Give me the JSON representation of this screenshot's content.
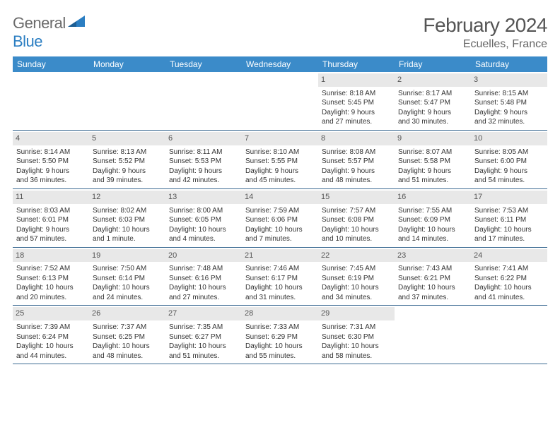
{
  "logo": {
    "text_gray": "General",
    "text_blue": "Blue"
  },
  "title": "February 2024",
  "location": "Ecuelles, France",
  "colors": {
    "header_bg": "#3b8bc9",
    "header_text": "#ffffff",
    "daynum_bg": "#e8e8e8",
    "daynum_text": "#555555",
    "week_border": "#3b6a92",
    "body_text": "#333333",
    "logo_gray": "#6b6b6b",
    "logo_blue": "#2b7ec2"
  },
  "weekdays": [
    "Sunday",
    "Monday",
    "Tuesday",
    "Wednesday",
    "Thursday",
    "Friday",
    "Saturday"
  ],
  "weeks": [
    [
      {
        "empty": true
      },
      {
        "empty": true
      },
      {
        "empty": true
      },
      {
        "empty": true
      },
      {
        "num": "1",
        "sunrise": "Sunrise: 8:18 AM",
        "sunset": "Sunset: 5:45 PM",
        "daylight1": "Daylight: 9 hours",
        "daylight2": "and 27 minutes."
      },
      {
        "num": "2",
        "sunrise": "Sunrise: 8:17 AM",
        "sunset": "Sunset: 5:47 PM",
        "daylight1": "Daylight: 9 hours",
        "daylight2": "and 30 minutes."
      },
      {
        "num": "3",
        "sunrise": "Sunrise: 8:15 AM",
        "sunset": "Sunset: 5:48 PM",
        "daylight1": "Daylight: 9 hours",
        "daylight2": "and 32 minutes."
      }
    ],
    [
      {
        "num": "4",
        "sunrise": "Sunrise: 8:14 AM",
        "sunset": "Sunset: 5:50 PM",
        "daylight1": "Daylight: 9 hours",
        "daylight2": "and 36 minutes."
      },
      {
        "num": "5",
        "sunrise": "Sunrise: 8:13 AM",
        "sunset": "Sunset: 5:52 PM",
        "daylight1": "Daylight: 9 hours",
        "daylight2": "and 39 minutes."
      },
      {
        "num": "6",
        "sunrise": "Sunrise: 8:11 AM",
        "sunset": "Sunset: 5:53 PM",
        "daylight1": "Daylight: 9 hours",
        "daylight2": "and 42 minutes."
      },
      {
        "num": "7",
        "sunrise": "Sunrise: 8:10 AM",
        "sunset": "Sunset: 5:55 PM",
        "daylight1": "Daylight: 9 hours",
        "daylight2": "and 45 minutes."
      },
      {
        "num": "8",
        "sunrise": "Sunrise: 8:08 AM",
        "sunset": "Sunset: 5:57 PM",
        "daylight1": "Daylight: 9 hours",
        "daylight2": "and 48 minutes."
      },
      {
        "num": "9",
        "sunrise": "Sunrise: 8:07 AM",
        "sunset": "Sunset: 5:58 PM",
        "daylight1": "Daylight: 9 hours",
        "daylight2": "and 51 minutes."
      },
      {
        "num": "10",
        "sunrise": "Sunrise: 8:05 AM",
        "sunset": "Sunset: 6:00 PM",
        "daylight1": "Daylight: 9 hours",
        "daylight2": "and 54 minutes."
      }
    ],
    [
      {
        "num": "11",
        "sunrise": "Sunrise: 8:03 AM",
        "sunset": "Sunset: 6:01 PM",
        "daylight1": "Daylight: 9 hours",
        "daylight2": "and 57 minutes."
      },
      {
        "num": "12",
        "sunrise": "Sunrise: 8:02 AM",
        "sunset": "Sunset: 6:03 PM",
        "daylight1": "Daylight: 10 hours",
        "daylight2": "and 1 minute."
      },
      {
        "num": "13",
        "sunrise": "Sunrise: 8:00 AM",
        "sunset": "Sunset: 6:05 PM",
        "daylight1": "Daylight: 10 hours",
        "daylight2": "and 4 minutes."
      },
      {
        "num": "14",
        "sunrise": "Sunrise: 7:59 AM",
        "sunset": "Sunset: 6:06 PM",
        "daylight1": "Daylight: 10 hours",
        "daylight2": "and 7 minutes."
      },
      {
        "num": "15",
        "sunrise": "Sunrise: 7:57 AM",
        "sunset": "Sunset: 6:08 PM",
        "daylight1": "Daylight: 10 hours",
        "daylight2": "and 10 minutes."
      },
      {
        "num": "16",
        "sunrise": "Sunrise: 7:55 AM",
        "sunset": "Sunset: 6:09 PM",
        "daylight1": "Daylight: 10 hours",
        "daylight2": "and 14 minutes."
      },
      {
        "num": "17",
        "sunrise": "Sunrise: 7:53 AM",
        "sunset": "Sunset: 6:11 PM",
        "daylight1": "Daylight: 10 hours",
        "daylight2": "and 17 minutes."
      }
    ],
    [
      {
        "num": "18",
        "sunrise": "Sunrise: 7:52 AM",
        "sunset": "Sunset: 6:13 PM",
        "daylight1": "Daylight: 10 hours",
        "daylight2": "and 20 minutes."
      },
      {
        "num": "19",
        "sunrise": "Sunrise: 7:50 AM",
        "sunset": "Sunset: 6:14 PM",
        "daylight1": "Daylight: 10 hours",
        "daylight2": "and 24 minutes."
      },
      {
        "num": "20",
        "sunrise": "Sunrise: 7:48 AM",
        "sunset": "Sunset: 6:16 PM",
        "daylight1": "Daylight: 10 hours",
        "daylight2": "and 27 minutes."
      },
      {
        "num": "21",
        "sunrise": "Sunrise: 7:46 AM",
        "sunset": "Sunset: 6:17 PM",
        "daylight1": "Daylight: 10 hours",
        "daylight2": "and 31 minutes."
      },
      {
        "num": "22",
        "sunrise": "Sunrise: 7:45 AM",
        "sunset": "Sunset: 6:19 PM",
        "daylight1": "Daylight: 10 hours",
        "daylight2": "and 34 minutes."
      },
      {
        "num": "23",
        "sunrise": "Sunrise: 7:43 AM",
        "sunset": "Sunset: 6:21 PM",
        "daylight1": "Daylight: 10 hours",
        "daylight2": "and 37 minutes."
      },
      {
        "num": "24",
        "sunrise": "Sunrise: 7:41 AM",
        "sunset": "Sunset: 6:22 PM",
        "daylight1": "Daylight: 10 hours",
        "daylight2": "and 41 minutes."
      }
    ],
    [
      {
        "num": "25",
        "sunrise": "Sunrise: 7:39 AM",
        "sunset": "Sunset: 6:24 PM",
        "daylight1": "Daylight: 10 hours",
        "daylight2": "and 44 minutes."
      },
      {
        "num": "26",
        "sunrise": "Sunrise: 7:37 AM",
        "sunset": "Sunset: 6:25 PM",
        "daylight1": "Daylight: 10 hours",
        "daylight2": "and 48 minutes."
      },
      {
        "num": "27",
        "sunrise": "Sunrise: 7:35 AM",
        "sunset": "Sunset: 6:27 PM",
        "daylight1": "Daylight: 10 hours",
        "daylight2": "and 51 minutes."
      },
      {
        "num": "28",
        "sunrise": "Sunrise: 7:33 AM",
        "sunset": "Sunset: 6:29 PM",
        "daylight1": "Daylight: 10 hours",
        "daylight2": "and 55 minutes."
      },
      {
        "num": "29",
        "sunrise": "Sunrise: 7:31 AM",
        "sunset": "Sunset: 6:30 PM",
        "daylight1": "Daylight: 10 hours",
        "daylight2": "and 58 minutes."
      },
      {
        "empty": true
      },
      {
        "empty": true
      }
    ]
  ]
}
